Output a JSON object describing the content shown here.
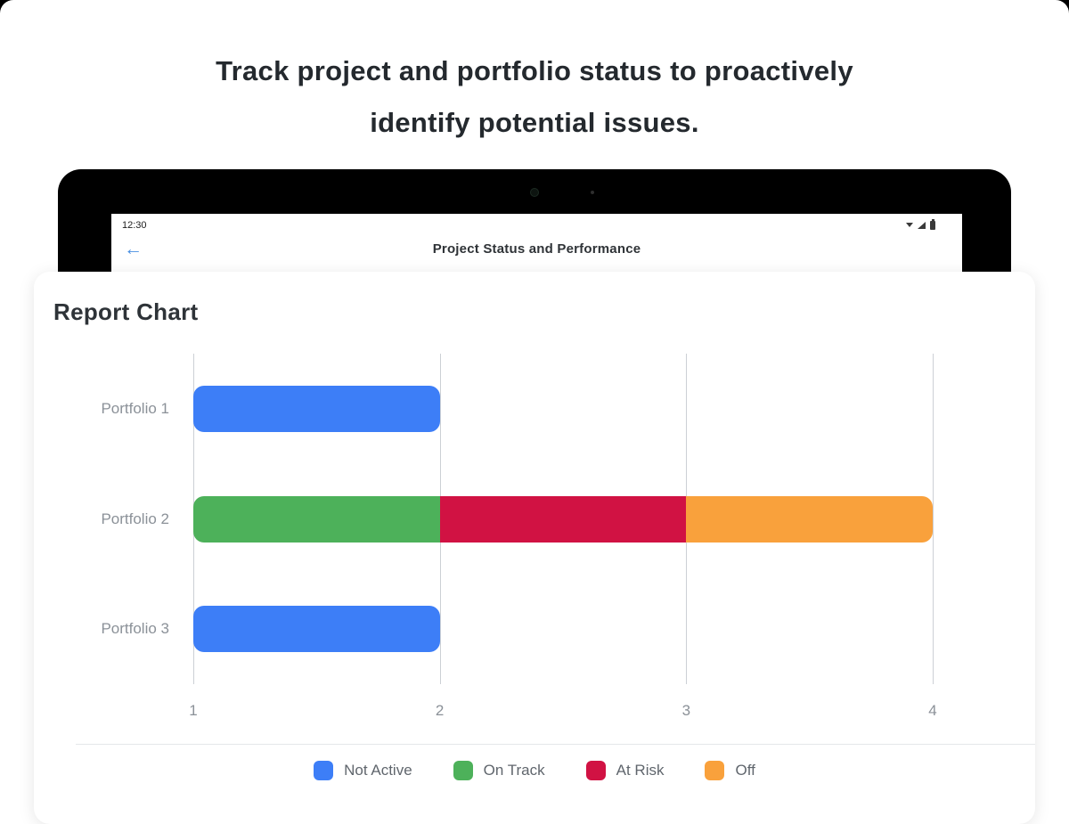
{
  "headline": {
    "line1": "Track project and portfolio status to proactively",
    "line2": "identify potential issues."
  },
  "tablet": {
    "status_bar": {
      "time": "12:30"
    },
    "app_bar": {
      "title": "Project Status and Performance",
      "back_glyph": "←"
    }
  },
  "report_card": {
    "title": "Report Chart"
  },
  "chart_data": {
    "type": "bar",
    "orientation": "horizontal",
    "title": "Report Chart",
    "xlim": [
      1,
      4
    ],
    "x_ticks": [
      1,
      2,
      3,
      4
    ],
    "grid": true,
    "legend_position": "bottom",
    "categories": [
      "Portfolio 1",
      "Portfolio 2",
      "Portfolio 3"
    ],
    "rows": [
      {
        "category": "Portfolio 1",
        "segments": [
          {
            "status": "Not Active",
            "color": "#3D7EF7",
            "start": 1,
            "end": 2
          }
        ]
      },
      {
        "category": "Portfolio 2",
        "segments": [
          {
            "status": "On Track",
            "color": "#4DB15A",
            "start": 1,
            "end": 2
          },
          {
            "status": "At Risk",
            "color": "#D11243",
            "start": 2,
            "end": 3
          },
          {
            "status": "Off",
            "color": "#F9A13C",
            "start": 3,
            "end": 4
          }
        ]
      },
      {
        "category": "Portfolio 3",
        "segments": [
          {
            "status": "Not Active",
            "color": "#3D7EF7",
            "start": 1,
            "end": 2
          }
        ]
      }
    ],
    "legend": [
      {
        "label": "Not Active",
        "color": "#3D7EF7"
      },
      {
        "label": "On Track",
        "color": "#4DB15A"
      },
      {
        "label": "At Risk",
        "color": "#D11243"
      },
      {
        "label": "Off",
        "color": "#F9A13C"
      }
    ]
  }
}
